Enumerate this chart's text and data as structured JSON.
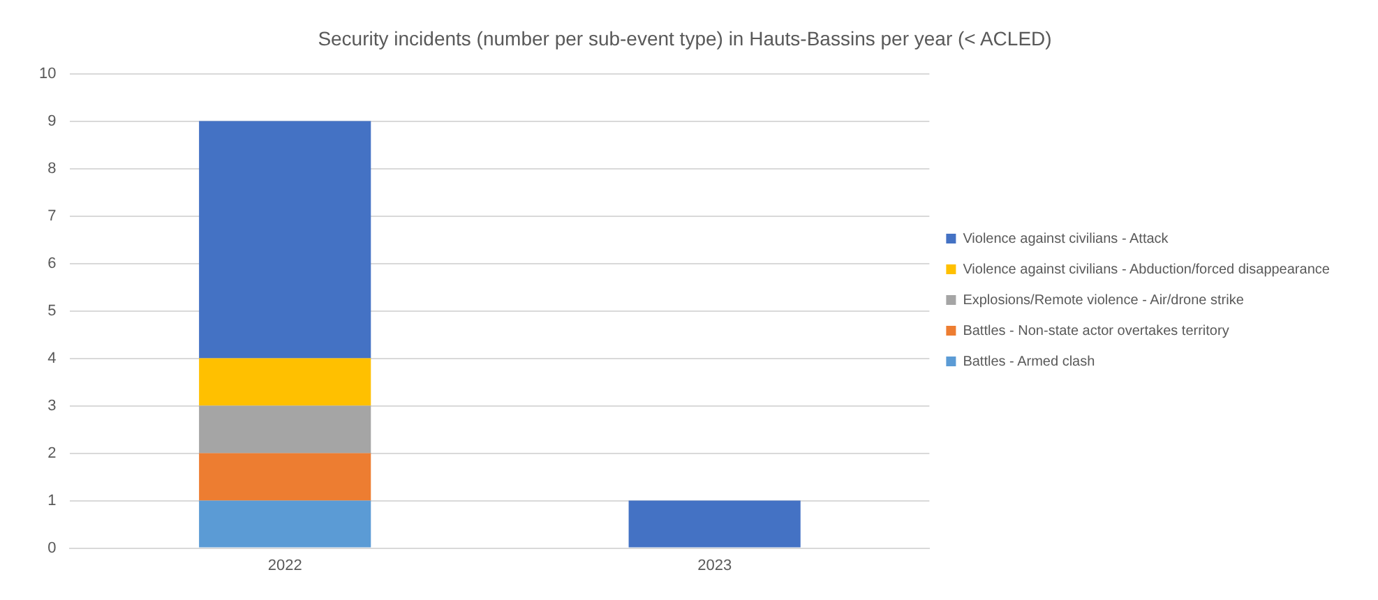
{
  "chart_data": {
    "type": "bar",
    "title": "Security incidents (number per sub-event type) in Hauts-Bassins per year (< ACLED)",
    "categories": [
      "2022",
      "2023"
    ],
    "stacked": true,
    "ylim": [
      0,
      10
    ],
    "yticks": [
      0,
      1,
      2,
      3,
      4,
      5,
      6,
      7,
      8,
      9,
      10
    ],
    "grid": "y",
    "legend": "right",
    "series": [
      {
        "name": "Battles - Armed clash",
        "color": "#5b9bd5",
        "values": [
          1,
          0
        ]
      },
      {
        "name": "Battles - Non-state actor overtakes territory",
        "color": "#ed7d31",
        "values": [
          1,
          0
        ]
      },
      {
        "name": "Explosions/Remote violence - Air/drone strike",
        "color": "#a5a5a5",
        "values": [
          1,
          0
        ]
      },
      {
        "name": "Violence against civilians - Abduction/forced disappearance",
        "color": "#ffc000",
        "values": [
          1,
          0
        ]
      },
      {
        "name": "Violence against civilians - Attack",
        "color": "#4472c4",
        "values": [
          5,
          1
        ]
      }
    ]
  }
}
